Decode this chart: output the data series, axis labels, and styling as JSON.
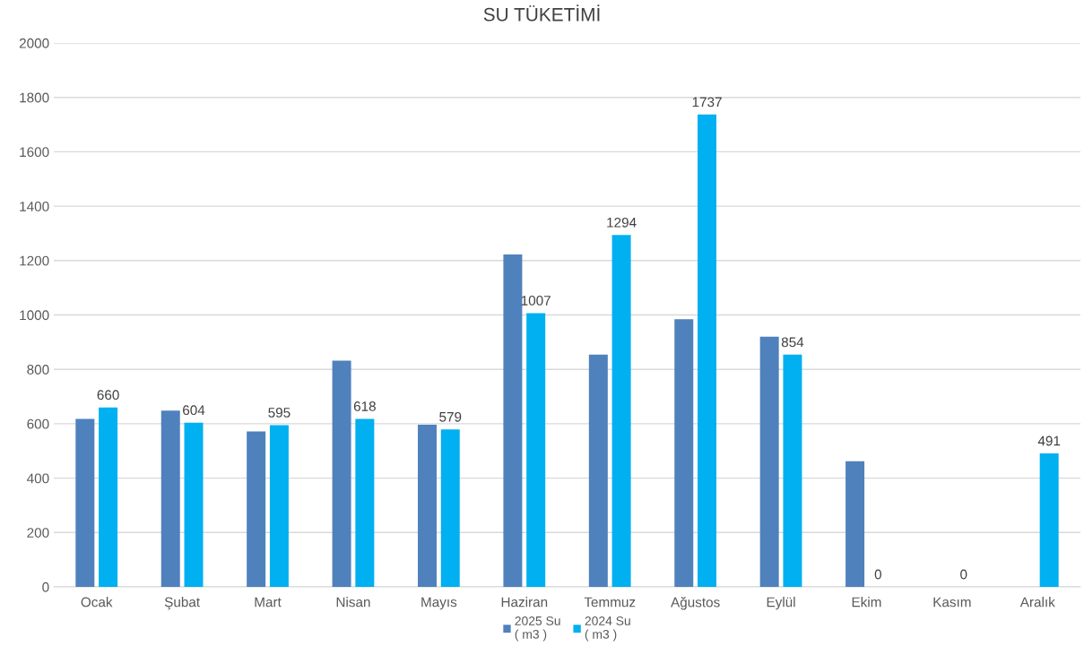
{
  "chart_data": {
    "type": "bar",
    "title": "SU TÜKETİMİ",
    "categories": [
      "Ocak",
      "Şubat",
      "Mart",
      "Nisan",
      "Mayıs",
      "Haziran",
      "Temmuz",
      "Ağustos",
      "Eylül",
      "Ekim",
      "Kasım",
      "Aralık"
    ],
    "series": [
      {
        "name": "2025 Su\n( m3 )",
        "color": "#4f81bd",
        "values": [
          618,
          648,
          572,
          832,
          596,
          1222,
          854,
          984,
          920,
          462,
          null,
          null
        ]
      },
      {
        "name": "2024 Su\n( m3 )",
        "color": "#00b0f0",
        "values": [
          660,
          604,
          595,
          618,
          579,
          1007,
          1294,
          1737,
          854,
          0,
          0,
          491
        ],
        "value_labels": [
          "660",
          "604",
          "595",
          "618",
          "579",
          "1007",
          "1294",
          "1737",
          "854",
          "0",
          "0",
          "491"
        ]
      }
    ],
    "ylim": [
      0,
      2000
    ],
    "yticks": [
      0,
      200,
      400,
      600,
      800,
      1000,
      1200,
      1400,
      1600,
      1800,
      2000
    ],
    "grid": "y",
    "legend": "bottom"
  }
}
